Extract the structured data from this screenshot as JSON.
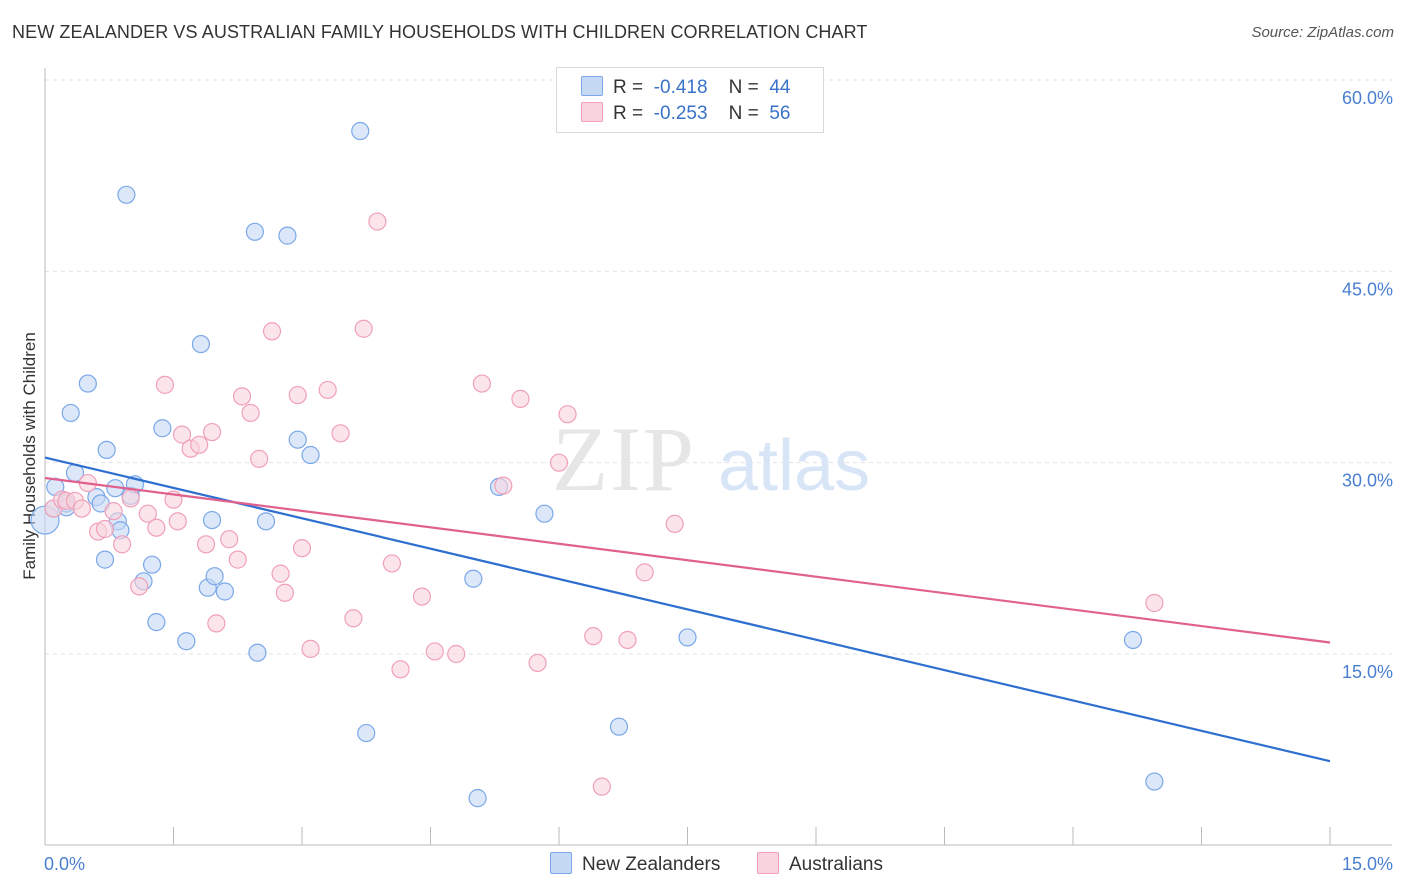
{
  "title": "NEW ZEALANDER VS AUSTRALIAN FAMILY HOUSEHOLDS WITH CHILDREN CORRELATION CHART",
  "source": "Source: ZipAtlas.com",
  "watermark": {
    "zip": "ZIP",
    "atlas": "atlas"
  },
  "legend": {
    "rows": [
      {
        "r_label": "R =",
        "r_value": "-0.418",
        "n_label": "N =",
        "n_value": "44"
      },
      {
        "r_label": "R =",
        "r_value": "-0.253",
        "n_label": "N =",
        "n_value": "56"
      }
    ]
  },
  "chart_data": {
    "type": "scatter",
    "title": "NEW ZEALANDER VS AUSTRALIAN FAMILY HOUSEHOLDS WITH CHILDREN CORRELATION CHART",
    "xlabel": "",
    "ylabel": "Family Households with Children",
    "xlim": [
      0,
      15
    ],
    "ylim": [
      0,
      61
    ],
    "x_tick_labels": [
      "0.0%",
      "15.0%"
    ],
    "y_ticks": [
      15,
      30,
      45,
      60
    ],
    "y_tick_labels": [
      "15.0%",
      "30.0%",
      "45.0%",
      "60.0%"
    ],
    "grid": true,
    "series": [
      {
        "name": "New Zealanders",
        "color": "#7aa8e8",
        "fill": "#c5d9f5",
        "line_color": "#2f6fd0",
        "trend": {
          "x": [
            0,
            15
          ],
          "y": [
            30.4,
            6.6
          ]
        },
        "points": [
          [
            0.0,
            25.5
          ],
          [
            0.1,
            26.4
          ],
          [
            0.12,
            28.1
          ],
          [
            0.25,
            26.8
          ],
          [
            0.25,
            26.5
          ],
          [
            0.3,
            33.9
          ],
          [
            0.35,
            29.2
          ],
          [
            0.5,
            36.2
          ],
          [
            0.6,
            27.3
          ],
          [
            0.65,
            26.8
          ],
          [
            0.72,
            31.0
          ],
          [
            0.82,
            28.0
          ],
          [
            0.85,
            25.4
          ],
          [
            0.88,
            24.7
          ],
          [
            0.95,
            51.0
          ],
          [
            1.0,
            27.4
          ],
          [
            1.05,
            28.3
          ],
          [
            1.15,
            20.7
          ],
          [
            1.25,
            22.0
          ],
          [
            1.3,
            17.5
          ],
          [
            1.37,
            32.7
          ],
          [
            1.65,
            16.0
          ],
          [
            1.82,
            39.3
          ],
          [
            1.9,
            20.2
          ],
          [
            1.95,
            25.5
          ],
          [
            1.98,
            21.1
          ],
          [
            2.1,
            19.9
          ],
          [
            2.45,
            48.1
          ],
          [
            2.48,
            15.1
          ],
          [
            2.58,
            25.4
          ],
          [
            2.83,
            47.8
          ],
          [
            2.95,
            31.8
          ],
          [
            3.1,
            30.6
          ],
          [
            3.68,
            56.0
          ],
          [
            3.75,
            8.8
          ],
          [
            5.0,
            20.9
          ],
          [
            5.05,
            3.7
          ],
          [
            5.3,
            28.1
          ],
          [
            5.83,
            26.0
          ],
          [
            6.7,
            9.3
          ],
          [
            7.5,
            16.3
          ],
          [
            12.7,
            16.1
          ],
          [
            12.95,
            5.0
          ],
          [
            0.7,
            22.4
          ]
        ]
      },
      {
        "name": "Australians",
        "color": "#f0a0b8",
        "fill": "#f9d3de",
        "line_color": "#e0608e",
        "trend": {
          "x": [
            0,
            15
          ],
          "y": [
            28.8,
            15.9
          ]
        },
        "points": [
          [
            0.1,
            26.4
          ],
          [
            0.2,
            27.1
          ],
          [
            0.25,
            27.0
          ],
          [
            0.35,
            27.0
          ],
          [
            0.43,
            26.4
          ],
          [
            0.5,
            28.4
          ],
          [
            0.62,
            24.6
          ],
          [
            0.7,
            24.8
          ],
          [
            0.8,
            26.2
          ],
          [
            0.9,
            23.6
          ],
          [
            1.0,
            27.2
          ],
          [
            1.1,
            20.3
          ],
          [
            1.2,
            26.0
          ],
          [
            1.3,
            24.9
          ],
          [
            1.4,
            36.1
          ],
          [
            1.5,
            27.1
          ],
          [
            1.6,
            32.2
          ],
          [
            1.7,
            31.1
          ],
          [
            1.8,
            31.4
          ],
          [
            1.88,
            23.6
          ],
          [
            1.95,
            32.4
          ],
          [
            2.0,
            17.4
          ],
          [
            2.15,
            24.0
          ],
          [
            2.3,
            35.2
          ],
          [
            2.4,
            33.9
          ],
          [
            2.5,
            30.3
          ],
          [
            2.65,
            40.3
          ],
          [
            2.75,
            21.3
          ],
          [
            2.8,
            19.8
          ],
          [
            2.95,
            35.3
          ],
          [
            3.1,
            15.4
          ],
          [
            3.3,
            35.7
          ],
          [
            3.45,
            32.3
          ],
          [
            3.6,
            17.8
          ],
          [
            3.72,
            40.5
          ],
          [
            3.88,
            48.9
          ],
          [
            4.05,
            22.1
          ],
          [
            4.15,
            13.8
          ],
          [
            4.4,
            19.5
          ],
          [
            4.55,
            15.2
          ],
          [
            4.8,
            15.0
          ],
          [
            5.1,
            36.2
          ],
          [
            5.35,
            28.2
          ],
          [
            5.55,
            35.0
          ],
          [
            5.75,
            14.3
          ],
          [
            6.0,
            30.0
          ],
          [
            6.1,
            33.8
          ],
          [
            6.4,
            16.4
          ],
          [
            6.5,
            4.6
          ],
          [
            6.8,
            16.1
          ],
          [
            7.0,
            21.4
          ],
          [
            7.35,
            25.2
          ],
          [
            12.95,
            19.0
          ],
          [
            1.55,
            25.4
          ],
          [
            2.25,
            22.4
          ],
          [
            3.0,
            23.3
          ]
        ]
      }
    ]
  }
}
